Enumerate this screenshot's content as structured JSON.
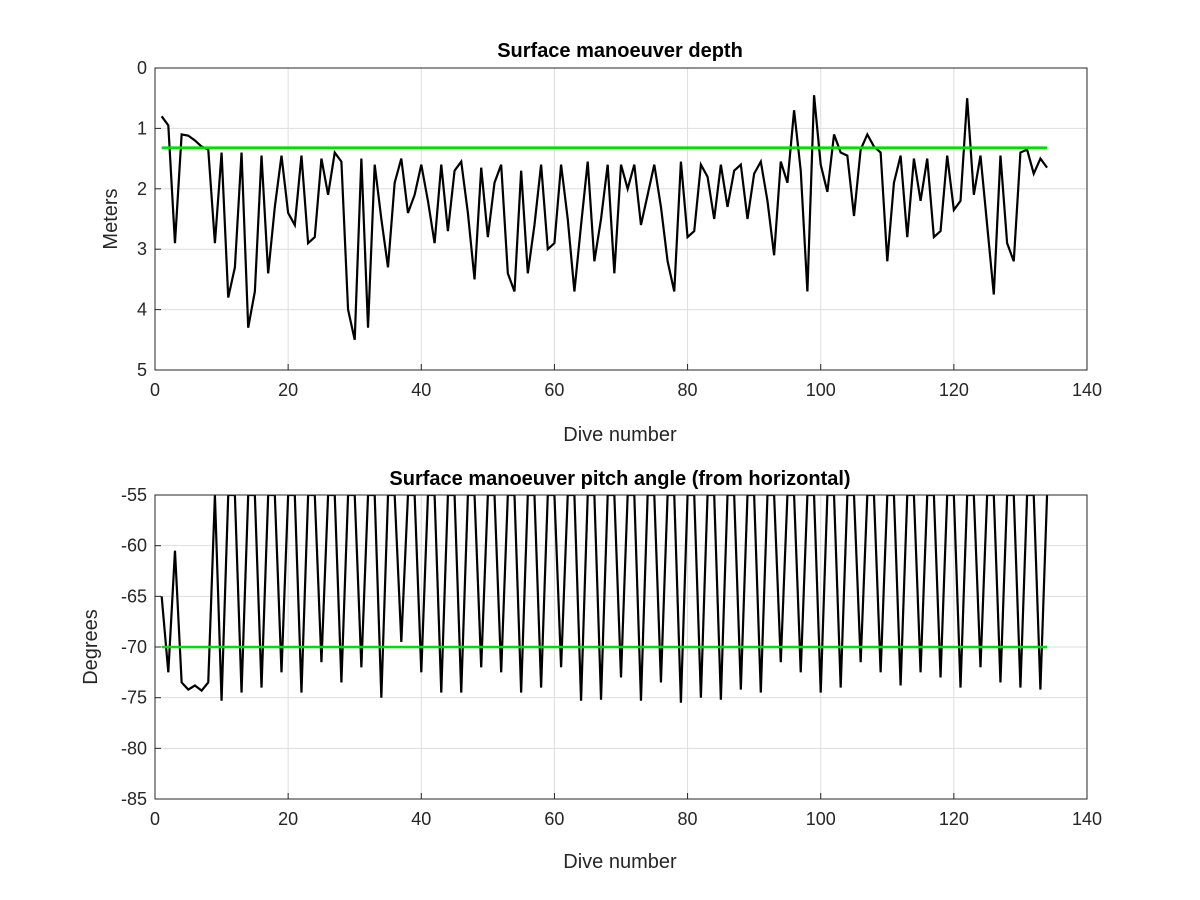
{
  "chart_data": [
    {
      "type": "line",
      "title": "Surface manoeuver depth",
      "xlabel": "Dive number",
      "ylabel": "Meters",
      "xlim": [
        0,
        140
      ],
      "ylim": [
        0,
        5
      ],
      "y_reversed": true,
      "xticks": [
        "0",
        "20",
        "40",
        "60",
        "80",
        "100",
        "120",
        "140"
      ],
      "yticks": [
        "0",
        "1",
        "2",
        "3",
        "4",
        "5"
      ],
      "grid": true,
      "colors": {
        "data": "#000000",
        "reference": "#00e000"
      },
      "series": [
        {
          "values": [
            [
              1,
              0.8
            ],
            [
              2,
              0.95
            ],
            [
              3,
              2.9
            ],
            [
              4,
              1.1
            ],
            [
              5,
              1.12
            ],
            [
              6,
              1.2
            ],
            [
              7,
              1.3
            ],
            [
              8,
              1.35
            ],
            [
              9,
              2.9
            ],
            [
              10,
              1.4
            ],
            [
              11,
              3.8
            ],
            [
              12,
              3.3
            ],
            [
              13,
              1.4
            ],
            [
              14,
              4.3
            ],
            [
              15,
              3.7
            ],
            [
              16,
              1.45
            ],
            [
              17,
              3.4
            ],
            [
              18,
              2.3
            ],
            [
              19,
              1.45
            ],
            [
              20,
              2.4
            ],
            [
              21,
              2.6
            ],
            [
              22,
              1.45
            ],
            [
              23,
              2.9
            ],
            [
              24,
              2.8
            ],
            [
              25,
              1.5
            ],
            [
              26,
              2.1
            ],
            [
              27,
              1.4
            ],
            [
              28,
              1.55
            ],
            [
              29,
              4.0
            ],
            [
              30,
              4.5
            ],
            [
              31,
              1.5
            ],
            [
              32,
              4.3
            ],
            [
              33,
              1.6
            ],
            [
              34,
              2.5
            ],
            [
              35,
              3.3
            ],
            [
              36,
              1.9
            ],
            [
              37,
              1.5
            ],
            [
              38,
              2.4
            ],
            [
              39,
              2.1
            ],
            [
              40,
              1.6
            ],
            [
              41,
              2.2
            ],
            [
              42,
              2.9
            ],
            [
              43,
              1.6
            ],
            [
              44,
              2.7
            ],
            [
              45,
              1.7
            ],
            [
              46,
              1.55
            ],
            [
              47,
              2.4
            ],
            [
              48,
              3.5
            ],
            [
              49,
              1.65
            ],
            [
              50,
              2.8
            ],
            [
              51,
              1.9
            ],
            [
              52,
              1.6
            ],
            [
              53,
              3.4
            ],
            [
              54,
              3.7
            ],
            [
              55,
              1.7
            ],
            [
              56,
              3.4
            ],
            [
              57,
              2.6
            ],
            [
              58,
              1.6
            ],
            [
              59,
              3.0
            ],
            [
              60,
              2.9
            ],
            [
              61,
              1.6
            ],
            [
              62,
              2.5
            ],
            [
              63,
              3.7
            ],
            [
              64,
              2.6
            ],
            [
              65,
              1.55
            ],
            [
              66,
              3.2
            ],
            [
              67,
              2.5
            ],
            [
              68,
              1.6
            ],
            [
              69,
              3.4
            ],
            [
              70,
              1.6
            ],
            [
              71,
              2.0
            ],
            [
              72,
              1.6
            ],
            [
              73,
              2.6
            ],
            [
              74,
              2.1
            ],
            [
              75,
              1.6
            ],
            [
              76,
              2.3
            ],
            [
              77,
              3.2
            ],
            [
              78,
              3.7
            ],
            [
              79,
              1.55
            ],
            [
              80,
              2.8
            ],
            [
              81,
              2.7
            ],
            [
              82,
              1.6
            ],
            [
              83,
              1.8
            ],
            [
              84,
              2.5
            ],
            [
              85,
              1.6
            ],
            [
              86,
              2.3
            ],
            [
              87,
              1.7
            ],
            [
              88,
              1.6
            ],
            [
              89,
              2.5
            ],
            [
              90,
              1.75
            ],
            [
              91,
              1.55
            ],
            [
              92,
              2.2
            ],
            [
              93,
              3.1
            ],
            [
              94,
              1.55
            ],
            [
              95,
              1.9
            ],
            [
              96,
              0.7
            ],
            [
              97,
              1.7
            ],
            [
              98,
              3.7
            ],
            [
              99,
              0.45
            ],
            [
              100,
              1.6
            ],
            [
              101,
              2.05
            ],
            [
              102,
              1.1
            ],
            [
              103,
              1.4
            ],
            [
              104,
              1.45
            ],
            [
              105,
              2.45
            ],
            [
              106,
              1.35
            ],
            [
              107,
              1.1
            ],
            [
              108,
              1.3
            ],
            [
              109,
              1.4
            ],
            [
              110,
              3.2
            ],
            [
              111,
              1.9
            ],
            [
              112,
              1.45
            ],
            [
              113,
              2.8
            ],
            [
              114,
              1.5
            ],
            [
              115,
              2.2
            ],
            [
              116,
              1.5
            ],
            [
              117,
              2.8
            ],
            [
              118,
              2.7
            ],
            [
              119,
              1.45
            ],
            [
              120,
              2.35
            ],
            [
              121,
              2.2
            ],
            [
              122,
              0.5
            ],
            [
              123,
              2.1
            ],
            [
              124,
              1.45
            ],
            [
              125,
              2.6
            ],
            [
              126,
              3.75
            ],
            [
              127,
              1.45
            ],
            [
              128,
              2.9
            ],
            [
              129,
              3.2
            ],
            [
              130,
              1.4
            ],
            [
              131,
              1.35
            ],
            [
              132,
              1.75
            ],
            [
              133,
              1.5
            ],
            [
              134,
              1.65
            ]
          ]
        },
        {
          "values": [
            [
              1,
              1.32
            ],
            [
              134,
              1.32
            ]
          ]
        }
      ]
    },
    {
      "type": "line",
      "title": "Surface manoeuver pitch angle (from horizontal)",
      "xlabel": "Dive number",
      "ylabel": "Degrees",
      "xlim": [
        0,
        140
      ],
      "ylim": [
        -85,
        -55
      ],
      "xticks": [
        "0",
        "20",
        "40",
        "60",
        "80",
        "100",
        "120",
        "140"
      ],
      "yticks": [
        "-55",
        "-60",
        "-65",
        "-70",
        "-75",
        "-80",
        "-85"
      ],
      "grid": true,
      "colors": {
        "data": "#000000",
        "reference": "#00e000"
      },
      "series": [
        {
          "values": [
            [
              1,
              -65
            ],
            [
              2,
              -72.5
            ],
            [
              3,
              -60.5
            ],
            [
              4,
              -73.5
            ],
            [
              5,
              -74.2
            ],
            [
              6,
              -73.8
            ],
            [
              7,
              -74.3
            ],
            [
              8,
              -73.5
            ],
            [
              9,
              -55
            ],
            [
              10,
              -75.3
            ],
            [
              11,
              -55
            ],
            [
              12,
              -55
            ],
            [
              13,
              -74.5
            ],
            [
              14,
              -55
            ],
            [
              15,
              -55
            ],
            [
              16,
              -74
            ],
            [
              17,
              -55
            ],
            [
              18,
              -55
            ],
            [
              19,
              -72.5
            ],
            [
              20,
              -55
            ],
            [
              21,
              -55
            ],
            [
              22,
              -74.5
            ],
            [
              23,
              -55
            ],
            [
              24,
              -55
            ],
            [
              25,
              -71.5
            ],
            [
              26,
              -55
            ],
            [
              27,
              -55
            ],
            [
              28,
              -73.5
            ],
            [
              29,
              -55
            ],
            [
              30,
              -55
            ],
            [
              31,
              -72
            ],
            [
              32,
              -55
            ],
            [
              33,
              -55
            ],
            [
              34,
              -75
            ],
            [
              35,
              -55
            ],
            [
              36,
              -55
            ],
            [
              37,
              -69.5
            ],
            [
              38,
              -55
            ],
            [
              39,
              -55
            ],
            [
              40,
              -72.5
            ],
            [
              41,
              -55
            ],
            [
              42,
              -55
            ],
            [
              43,
              -74.5
            ],
            [
              44,
              -55
            ],
            [
              45,
              -55
            ],
            [
              46,
              -74.5
            ],
            [
              47,
              -55
            ],
            [
              48,
              -55
            ],
            [
              49,
              -72
            ],
            [
              50,
              -55
            ],
            [
              51,
              -55
            ],
            [
              52,
              -72.5
            ],
            [
              53,
              -55
            ],
            [
              54,
              -55
            ],
            [
              55,
              -74.5
            ],
            [
              56,
              -55
            ],
            [
              57,
              -55
            ],
            [
              58,
              -74
            ],
            [
              59,
              -55
            ],
            [
              60,
              -55
            ],
            [
              61,
              -72
            ],
            [
              62,
              -55
            ],
            [
              63,
              -55
            ],
            [
              64,
              -75.3
            ],
            [
              65,
              -55
            ],
            [
              66,
              -55
            ],
            [
              67,
              -75.2
            ],
            [
              68,
              -55
            ],
            [
              69,
              -55
            ],
            [
              70,
              -73
            ],
            [
              71,
              -55
            ],
            [
              72,
              -55
            ],
            [
              73,
              -75.3
            ],
            [
              74,
              -55
            ],
            [
              75,
              -55
            ],
            [
              76,
              -73.5
            ],
            [
              77,
              -55
            ],
            [
              78,
              -55
            ],
            [
              79,
              -75.5
            ],
            [
              80,
              -55
            ],
            [
              81,
              -55
            ],
            [
              82,
              -75
            ],
            [
              83,
              -55
            ],
            [
              84,
              -55
            ],
            [
              85,
              -75.2
            ],
            [
              86,
              -55
            ],
            [
              87,
              -55
            ],
            [
              88,
              -74.2
            ],
            [
              89,
              -55
            ],
            [
              90,
              -55
            ],
            [
              91,
              -74.5
            ],
            [
              92,
              -55
            ],
            [
              93,
              -55
            ],
            [
              94,
              -71.5
            ],
            [
              95,
              -55
            ],
            [
              96,
              -55
            ],
            [
              97,
              -72.5
            ],
            [
              98,
              -55
            ],
            [
              99,
              -55
            ],
            [
              100,
              -74.5
            ],
            [
              101,
              -55
            ],
            [
              102,
              -55
            ],
            [
              103,
              -74
            ],
            [
              104,
              -55
            ],
            [
              105,
              -55
            ],
            [
              106,
              -71.5
            ],
            [
              107,
              -55
            ],
            [
              108,
              -55
            ],
            [
              109,
              -72.5
            ],
            [
              110,
              -55
            ],
            [
              111,
              -55
            ],
            [
              112,
              -73.8
            ],
            [
              113,
              -55
            ],
            [
              114,
              -55
            ],
            [
              115,
              -72.5
            ],
            [
              116,
              -55
            ],
            [
              117,
              -55
            ],
            [
              118,
              -73
            ],
            [
              119,
              -55
            ],
            [
              120,
              -55
            ],
            [
              121,
              -74
            ],
            [
              122,
              -55
            ],
            [
              123,
              -55
            ],
            [
              124,
              -72
            ],
            [
              125,
              -55
            ],
            [
              126,
              -55
            ],
            [
              127,
              -73.5
            ],
            [
              128,
              -55
            ],
            [
              129,
              -55
            ],
            [
              130,
              -74
            ],
            [
              131,
              -55
            ],
            [
              132,
              -55
            ],
            [
              133,
              -74.2
            ],
            [
              134,
              -55
            ]
          ]
        },
        {
          "values": [
            [
              1,
              -70
            ],
            [
              134,
              -70
            ]
          ]
        }
      ]
    }
  ]
}
